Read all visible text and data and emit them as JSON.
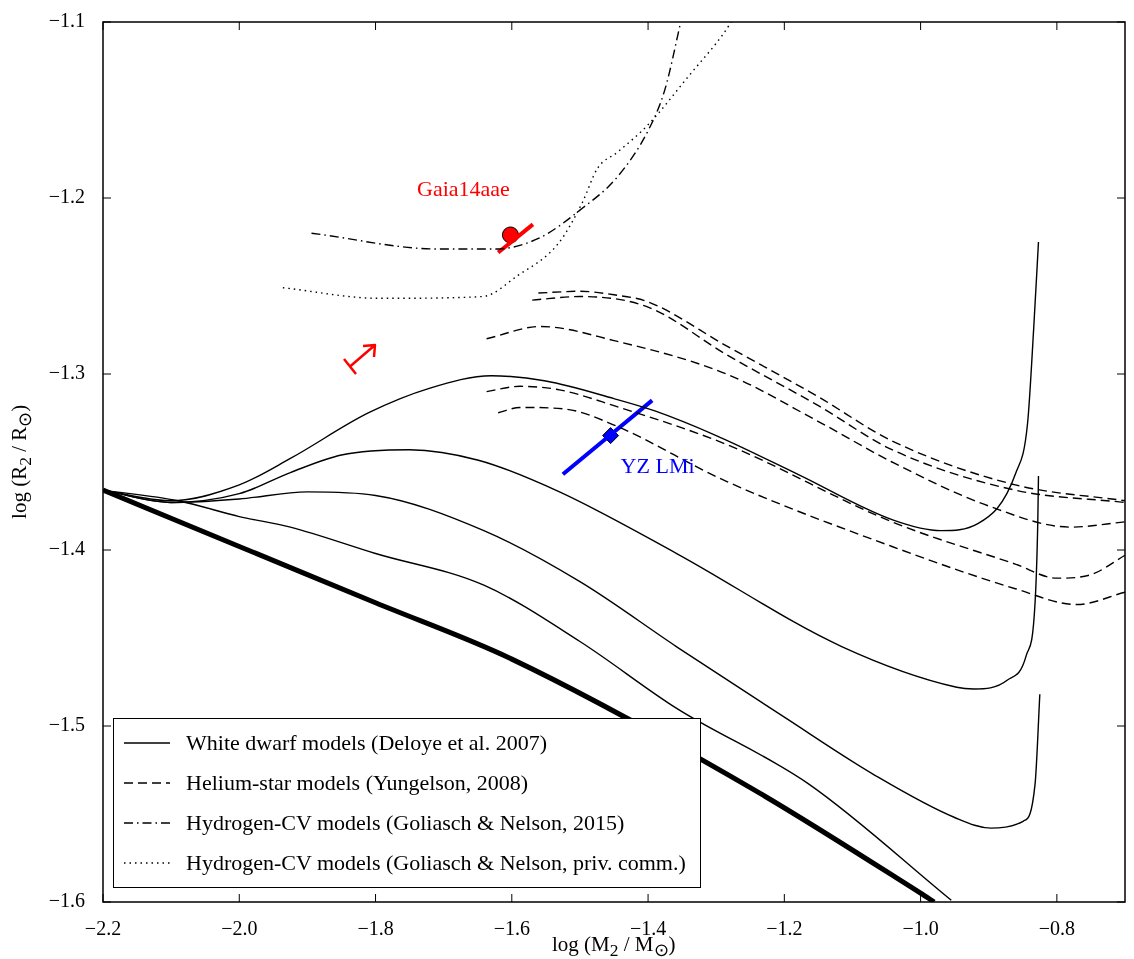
{
  "chart_data": {
    "type": "line",
    "xlabel": "log (M$_{2}$ / M$_{⊙}$)",
    "ylabel": "log (R$_{2}$ / R$_{⊙}$)",
    "xlim": [
      -2.2,
      -0.7
    ],
    "ylim": [
      -1.6,
      -1.1
    ],
    "xticks": [
      {
        "value": -2.2,
        "label": "−2.2"
      },
      {
        "value": -2.0,
        "label": "−2.0"
      },
      {
        "value": -1.8,
        "label": "−1.8"
      },
      {
        "value": -1.6,
        "label": "−1.6"
      },
      {
        "value": -1.4,
        "label": "−1.4"
      },
      {
        "value": -1.2,
        "label": "−1.2"
      },
      {
        "value": -1.0,
        "label": "−1.0"
      },
      {
        "value": -0.8,
        "label": "−0.8"
      }
    ],
    "yticks": [
      {
        "value": -1.6,
        "label": "−1.6"
      },
      {
        "value": -1.5,
        "label": "−1.5"
      },
      {
        "value": -1.4,
        "label": "−1.4"
      },
      {
        "value": -1.3,
        "label": "−1.3"
      },
      {
        "value": -1.2,
        "label": "−1.2"
      },
      {
        "value": -1.1,
        "label": "−1.1"
      }
    ],
    "grid": false,
    "legend": "bottom left",
    "marker": "none",
    "series": [
      {
        "name": "White dwarf models (Deloye et al. 2007)",
        "color": "#000000",
        "line_style": "solid",
        "x": [
          -2.2,
          -2.1,
          -2.0,
          -1.925,
          -1.81,
          -1.72,
          -1.63,
          -1.55,
          -1.45,
          -1.39,
          -1.3,
          -1.18,
          -1.04,
          -0.97,
          -0.916,
          -0.86,
          -0.843,
          -0.834,
          -0.827
        ],
        "values": [
          -1.366,
          -1.372,
          -1.363,
          -1.348,
          -1.322,
          -1.308,
          -1.301,
          -1.304,
          -1.314,
          -1.321,
          -1.335,
          -1.357,
          -1.383,
          -1.389,
          -1.385,
          -1.356,
          -1.328,
          -1.274,
          -1.225
        ]
      },
      {
        "color": "#000000",
        "line_style": "solid",
        "x": [
          -2.2,
          -2.1,
          -2.0,
          -1.925,
          -1.85,
          -1.75,
          -1.649,
          -1.53,
          -1.358,
          -1.115,
          -0.947,
          -0.922,
          -0.873,
          -0.845,
          -0.832,
          -0.828,
          -0.827
        ],
        "values": [
          -1.366,
          -1.373,
          -1.368,
          -1.356,
          -1.346,
          -1.343,
          -1.349,
          -1.367,
          -1.402,
          -1.455,
          -1.478,
          -1.479,
          -1.474,
          -1.46,
          -1.43,
          -1.384,
          -1.358
        ]
      },
      {
        "color": "#000000",
        "line_style": "solid",
        "x": [
          -2.2,
          -2.1,
          -2.0,
          -1.9,
          -1.8,
          -1.641,
          -1.5,
          -1.358,
          -1.2,
          -1.067,
          -0.95,
          -0.897,
          -0.849,
          -0.832,
          -0.825
        ],
        "values": [
          -1.366,
          -1.373,
          -1.371,
          -1.367,
          -1.369,
          -1.389,
          -1.418,
          -1.455,
          -1.495,
          -1.528,
          -1.552,
          -1.558,
          -1.554,
          -1.533,
          -1.482
        ]
      },
      {
        "color": "#000000",
        "line_style": "solid",
        "x": [
          -2.2,
          -2.09,
          -2.0,
          -1.925,
          -1.8,
          -1.641,
          -1.5,
          -1.358,
          -1.164,
          -0.955
        ],
        "values": [
          -1.366,
          -1.372,
          -1.381,
          -1.387,
          -1.402,
          -1.42,
          -1.452,
          -1.49,
          -1.533,
          -1.599
        ]
      },
      {
        "color": "#000000",
        "line_style": "solid",
        "x": [
          -2.2,
          -2.0,
          -1.8,
          -1.6,
          -1.25,
          -1.0,
          -0.98
        ],
        "values": [
          -1.366,
          -1.398,
          -1.43,
          -1.462,
          -1.535,
          -1.595,
          -1.6
        ]
      },
      {
        "name": "Helium-star models (Yungelson, 2008)",
        "color": "#000000",
        "line_style": "dashed",
        "x": [
          -1.561,
          -1.5,
          -1.45,
          -1.4,
          -1.285,
          -1.15,
          -1.042,
          -0.861,
          -0.7
        ],
        "values": [
          -1.254,
          -1.253,
          -1.255,
          -1.259,
          -1.284,
          -1.313,
          -1.338,
          -1.363,
          -1.372
        ]
      },
      {
        "color": "#000000",
        "line_style": "dashed",
        "x": [
          -1.57,
          -1.5,
          -1.4,
          -1.285,
          -1.15,
          -1.042,
          -0.861,
          -0.7
        ],
        "values": [
          -1.258,
          -1.256,
          -1.262,
          -1.289,
          -1.318,
          -1.343,
          -1.366,
          -1.373
        ]
      },
      {
        "color": "#000000",
        "line_style": "dashed",
        "x": [
          -1.637,
          -1.558,
          -1.45,
          -1.285,
          -1.15,
          -1.042,
          -0.9,
          -0.78,
          -0.7
        ],
        "values": [
          -1.28,
          -1.273,
          -1.281,
          -1.3,
          -1.327,
          -1.35,
          -1.375,
          -1.387,
          -1.384
        ]
      },
      {
        "color": "#000000",
        "line_style": "dashed",
        "x": [
          -1.637,
          -1.588,
          -1.53,
          -1.45,
          -1.285,
          -1.042,
          -0.861,
          -0.8,
          -0.75,
          -0.7
        ],
        "values": [
          -1.31,
          -1.307,
          -1.309,
          -1.318,
          -1.34,
          -1.384,
          -1.408,
          -1.416,
          -1.414,
          -1.403
        ]
      },
      {
        "color": "#000000",
        "line_style": "dashed",
        "x": [
          -1.62,
          -1.588,
          -1.52,
          -1.45,
          -1.285,
          -1.042,
          -0.861,
          -0.771,
          -0.7
        ],
        "values": [
          -1.322,
          -1.319,
          -1.32,
          -1.329,
          -1.361,
          -1.398,
          -1.422,
          -1.431,
          -1.424
        ]
      },
      {
        "name": "Hydrogen-CV models (Goliasch & Nelson, 2015)",
        "color": "#000000",
        "line_style": "dashdot",
        "x": [
          -1.894,
          -1.707,
          -1.625,
          -1.561,
          -1.497,
          -1.445,
          -1.399,
          -1.375,
          -1.352
        ],
        "values": [
          -1.22,
          -1.229,
          -1.229,
          -1.223,
          -1.206,
          -1.188,
          -1.161,
          -1.138,
          -1.1
        ]
      },
      {
        "name": "Hydrogen-CV models (Goliasch & Nelson, priv. comm.)",
        "color": "#000000",
        "line_style": "dotted",
        "x": [
          -1.936,
          -1.794,
          -1.643,
          -1.591,
          -1.532,
          -1.497,
          -1.474,
          -1.445,
          -1.399,
          -1.341,
          -1.29,
          -1.278
        ],
        "values": [
          -1.251,
          -1.257,
          -1.256,
          -1.244,
          -1.226,
          -1.203,
          -1.183,
          -1.174,
          -1.158,
          -1.131,
          -1.107,
          -1.1
        ]
      },
      {
        "color": "#ff0000",
        "line_style": "solid",
        "x": [
          -1.62,
          -1.569
        ],
        "values": [
          -1.231,
          -1.215
        ]
      },
      {
        "color": "#0000ff",
        "line_style": "solid",
        "x": [
          -1.525,
          -1.394
        ],
        "values": [
          -1.357,
          -1.315
        ]
      },
      {
        "type": "scatter",
        "color": "#ff0000",
        "marker": "circle",
        "x": [
          -1.602
        ],
        "values": [
          -1.221
        ]
      },
      {
        "type": "scatter",
        "color": "#0000ff",
        "marker": "diamond",
        "x": [
          -1.455
        ],
        "values": [
          -1.335
        ]
      }
    ],
    "annotations": [
      "Gaia14aae",
      "YZ LMi"
    ]
  }
}
